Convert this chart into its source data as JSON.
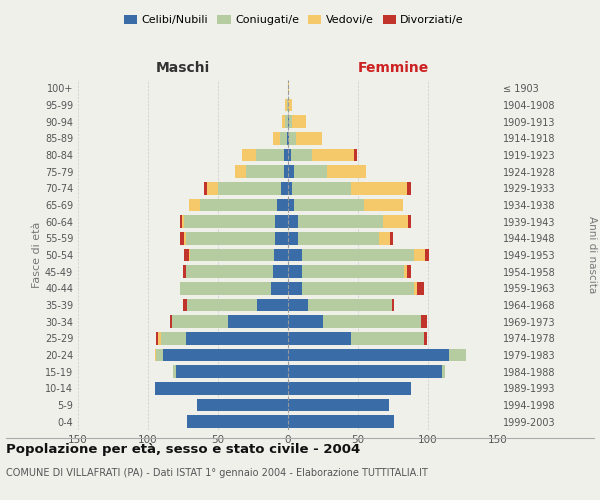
{
  "age_groups": [
    "0-4",
    "5-9",
    "10-14",
    "15-19",
    "20-24",
    "25-29",
    "30-34",
    "35-39",
    "40-44",
    "45-49",
    "50-54",
    "55-59",
    "60-64",
    "65-69",
    "70-74",
    "75-79",
    "80-84",
    "85-89",
    "90-94",
    "95-99",
    "100+"
  ],
  "birth_years": [
    "1999-2003",
    "1994-1998",
    "1989-1993",
    "1984-1988",
    "1979-1983",
    "1974-1978",
    "1969-1973",
    "1964-1968",
    "1959-1963",
    "1954-1958",
    "1949-1953",
    "1944-1948",
    "1939-1943",
    "1934-1938",
    "1929-1933",
    "1924-1928",
    "1919-1923",
    "1914-1918",
    "1909-1913",
    "1904-1908",
    "≤ 1903"
  ],
  "maschi": {
    "celibi": [
      72,
      65,
      95,
      80,
      89,
      73,
      43,
      22,
      12,
      11,
      10,
      9,
      9,
      8,
      5,
      3,
      3,
      1,
      0,
      0,
      0
    ],
    "coniugati": [
      0,
      0,
      0,
      2,
      5,
      18,
      40,
      50,
      65,
      62,
      60,
      64,
      65,
      55,
      45,
      27,
      20,
      5,
      2,
      1,
      0
    ],
    "vedovi": [
      0,
      0,
      0,
      0,
      1,
      2,
      0,
      0,
      0,
      0,
      1,
      1,
      2,
      8,
      8,
      8,
      10,
      5,
      2,
      1,
      0
    ],
    "divorziati": [
      0,
      0,
      0,
      0,
      0,
      1,
      1,
      3,
      0,
      2,
      3,
      3,
      1,
      0,
      2,
      0,
      0,
      0,
      0,
      0,
      0
    ]
  },
  "femmine": {
    "nubili": [
      76,
      72,
      88,
      110,
      115,
      45,
      25,
      14,
      10,
      10,
      10,
      7,
      7,
      4,
      3,
      4,
      2,
      1,
      1,
      0,
      0
    ],
    "coniugate": [
      0,
      0,
      0,
      2,
      12,
      52,
      70,
      60,
      80,
      73,
      80,
      58,
      61,
      50,
      42,
      24,
      15,
      5,
      2,
      0,
      0
    ],
    "vedove": [
      0,
      0,
      0,
      0,
      0,
      0,
      0,
      0,
      2,
      2,
      8,
      8,
      18,
      28,
      40,
      28,
      30,
      18,
      10,
      3,
      1
    ],
    "divorziate": [
      0,
      0,
      0,
      0,
      0,
      2,
      4,
      2,
      5,
      3,
      3,
      2,
      2,
      0,
      3,
      0,
      2,
      0,
      0,
      0,
      0
    ]
  },
  "colors": {
    "celibi_nubili": "#3a6ca8",
    "coniugati": "#b5cba0",
    "vedovi": "#f5c96a",
    "divorziati": "#c0342c"
  },
  "title": "Popolazione per età, sesso e stato civile - 2004",
  "subtitle": "COMUNE DI VILLAFRATI (PA) - Dati ISTAT 1° gennaio 2004 - Elaborazione TUTTITALIA.IT",
  "xlabel_left": "Maschi",
  "xlabel_right": "Femmine",
  "ylabel_left": "Fasce di età",
  "ylabel_right": "Anni di nascita",
  "xlim": 150,
  "background_color": "#f0f0eb",
  "grid_color": "#cccccc"
}
